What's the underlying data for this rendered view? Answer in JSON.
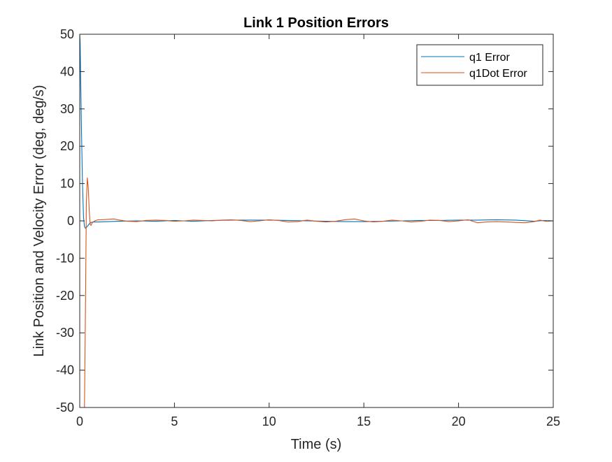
{
  "chart_data": {
    "type": "line",
    "title": "Link 1 Position Errors",
    "xlabel": "Time (s)",
    "ylabel": "Link Position and Velocity Error (deg, deg/s)",
    "xlim": [
      0,
      25
    ],
    "ylim": [
      -50,
      50
    ],
    "xticks": [
      0,
      5,
      10,
      15,
      20,
      25
    ],
    "yticks": [
      -50,
      -40,
      -30,
      -20,
      -10,
      0,
      10,
      20,
      30,
      40,
      50
    ],
    "grid": false,
    "legend_position": "top-right",
    "series": [
      {
        "name": "q1 Error",
        "color": "#0072BD",
        "x": [
          0,
          0.02,
          0.05,
          0.1,
          0.15,
          0.2,
          0.25,
          0.3,
          0.4,
          0.5,
          0.6,
          0.8,
          1.0,
          1.5,
          2.0,
          3.0,
          4.0,
          5.0,
          6.0,
          7.0,
          8.0,
          9.0,
          10.0,
          11.0,
          12.0,
          13.0,
          14.0,
          15.0,
          16.0,
          17.0,
          18.0,
          19.0,
          20.0,
          21.0,
          22.0,
          23.0,
          24.0,
          24.5,
          25.0
        ],
        "y": [
          50,
          48,
          38,
          22,
          9,
          1,
          -1.5,
          -2,
          -1.5,
          -0.8,
          -0.4,
          -0.3,
          -0.3,
          -0.2,
          -0.1,
          0.0,
          -0.1,
          0.1,
          -0.1,
          0.1,
          0.2,
          0.2,
          0.2,
          0.1,
          0.0,
          -0.1,
          -0.2,
          -0.2,
          -0.1,
          0.0,
          0.1,
          0.1,
          0.2,
          0.2,
          0.3,
          0.2,
          -0.1,
          0.1,
          0.0
        ]
      },
      {
        "name": "q1Dot Error",
        "color": "#D95319",
        "x": [
          0,
          0.02,
          0.05,
          0.1,
          0.15,
          0.2,
          0.25,
          0.3,
          0.35,
          0.4,
          0.45,
          0.5,
          0.55,
          0.6,
          0.65,
          0.7,
          0.8,
          0.9,
          1.0,
          1.2,
          1.5,
          1.8,
          2.0,
          2.5,
          3.0,
          3.5,
          4.0,
          4.5,
          5.0,
          5.5,
          6.0,
          6.5,
          7.0,
          7.5,
          8.0,
          8.5,
          9.0,
          9.5,
          10.0,
          10.5,
          11.0,
          11.5,
          12.0,
          12.5,
          13.0,
          13.5,
          14.0,
          14.5,
          15.0,
          15.5,
          16.0,
          16.5,
          17.0,
          17.5,
          18.0,
          18.5,
          19.0,
          19.5,
          20.0,
          20.5,
          21.0,
          21.5,
          22.0,
          22.5,
          23.0,
          23.5,
          24.0,
          24.3,
          24.6,
          25.0
        ],
        "y": [
          -50,
          -50,
          -50,
          -50,
          -50,
          -50,
          -50,
          -25,
          5,
          11.5,
          9,
          3,
          -1,
          -1.2,
          -0.6,
          -0.3,
          0.0,
          0.2,
          0.3,
          0.3,
          0.4,
          0.5,
          0.3,
          -0.1,
          -0.2,
          0.1,
          0.2,
          0.1,
          -0.1,
          0.0,
          0.2,
          0.1,
          0.0,
          0.2,
          0.3,
          0.1,
          -0.2,
          0.0,
          0.3,
          0.1,
          -0.3,
          -0.2,
          0.2,
          -0.1,
          -0.3,
          -0.1,
          0.3,
          0.5,
          0.0,
          -0.3,
          -0.1,
          0.2,
          0.0,
          -0.3,
          -0.1,
          0.2,
          0.1,
          -0.2,
          0.0,
          0.3,
          -0.5,
          -0.3,
          -0.2,
          -0.3,
          -0.4,
          -0.5,
          -0.2,
          0.2,
          -0.1,
          0.0
        ]
      }
    ]
  }
}
